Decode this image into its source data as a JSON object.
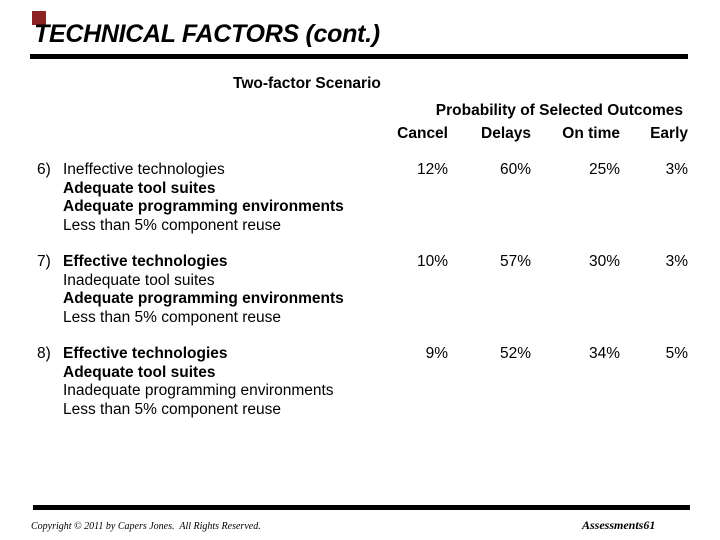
{
  "slide": {
    "accent_color": "#8b2323",
    "title": "TECHNICAL FACTORS (cont.)",
    "scenario_heading": "Two-factor Scenario",
    "table": {
      "caption": "Probability of Selected Outcomes",
      "columns": [
        "Cancel",
        "Delays",
        "On time",
        "Early"
      ],
      "rows": [
        {
          "number": "6)",
          "lines": [
            {
              "text": "Ineffective technologies",
              "bold": false
            },
            {
              "text": "Adequate tool suites",
              "bold": true
            },
            {
              "text": "Adequate programming environments",
              "bold": true
            },
            {
              "text": "Less than 5% component reuse",
              "bold": false
            }
          ],
          "values": [
            "12%",
            "60%",
            "25%",
            "3%"
          ]
        },
        {
          "number": "7)",
          "lines": [
            {
              "text": "Effective technologies",
              "bold": true
            },
            {
              "text": "Inadequate tool suites",
              "bold": false
            },
            {
              "text": "Adequate programming environments",
              "bold": true
            },
            {
              "text": "Less than 5% component reuse",
              "bold": false
            }
          ],
          "values": [
            "10%",
            "57%",
            "30%",
            "3%"
          ]
        },
        {
          "number": "8)",
          "lines": [
            {
              "text": "Effective technologies",
              "bold": true
            },
            {
              "text": "Adequate tool suites",
              "bold": true
            },
            {
              "text": "Inadequate programming environments",
              "bold": false
            },
            {
              "text": "Less than 5% component reuse",
              "bold": false
            }
          ],
          "values": [
            "9%",
            "52%",
            "34%",
            "5%"
          ]
        }
      ]
    },
    "footer": {
      "copyright": "Copyright © 2011 by Capers Jones.  All Rights Reserved.",
      "page_label": "Assessments61"
    }
  }
}
